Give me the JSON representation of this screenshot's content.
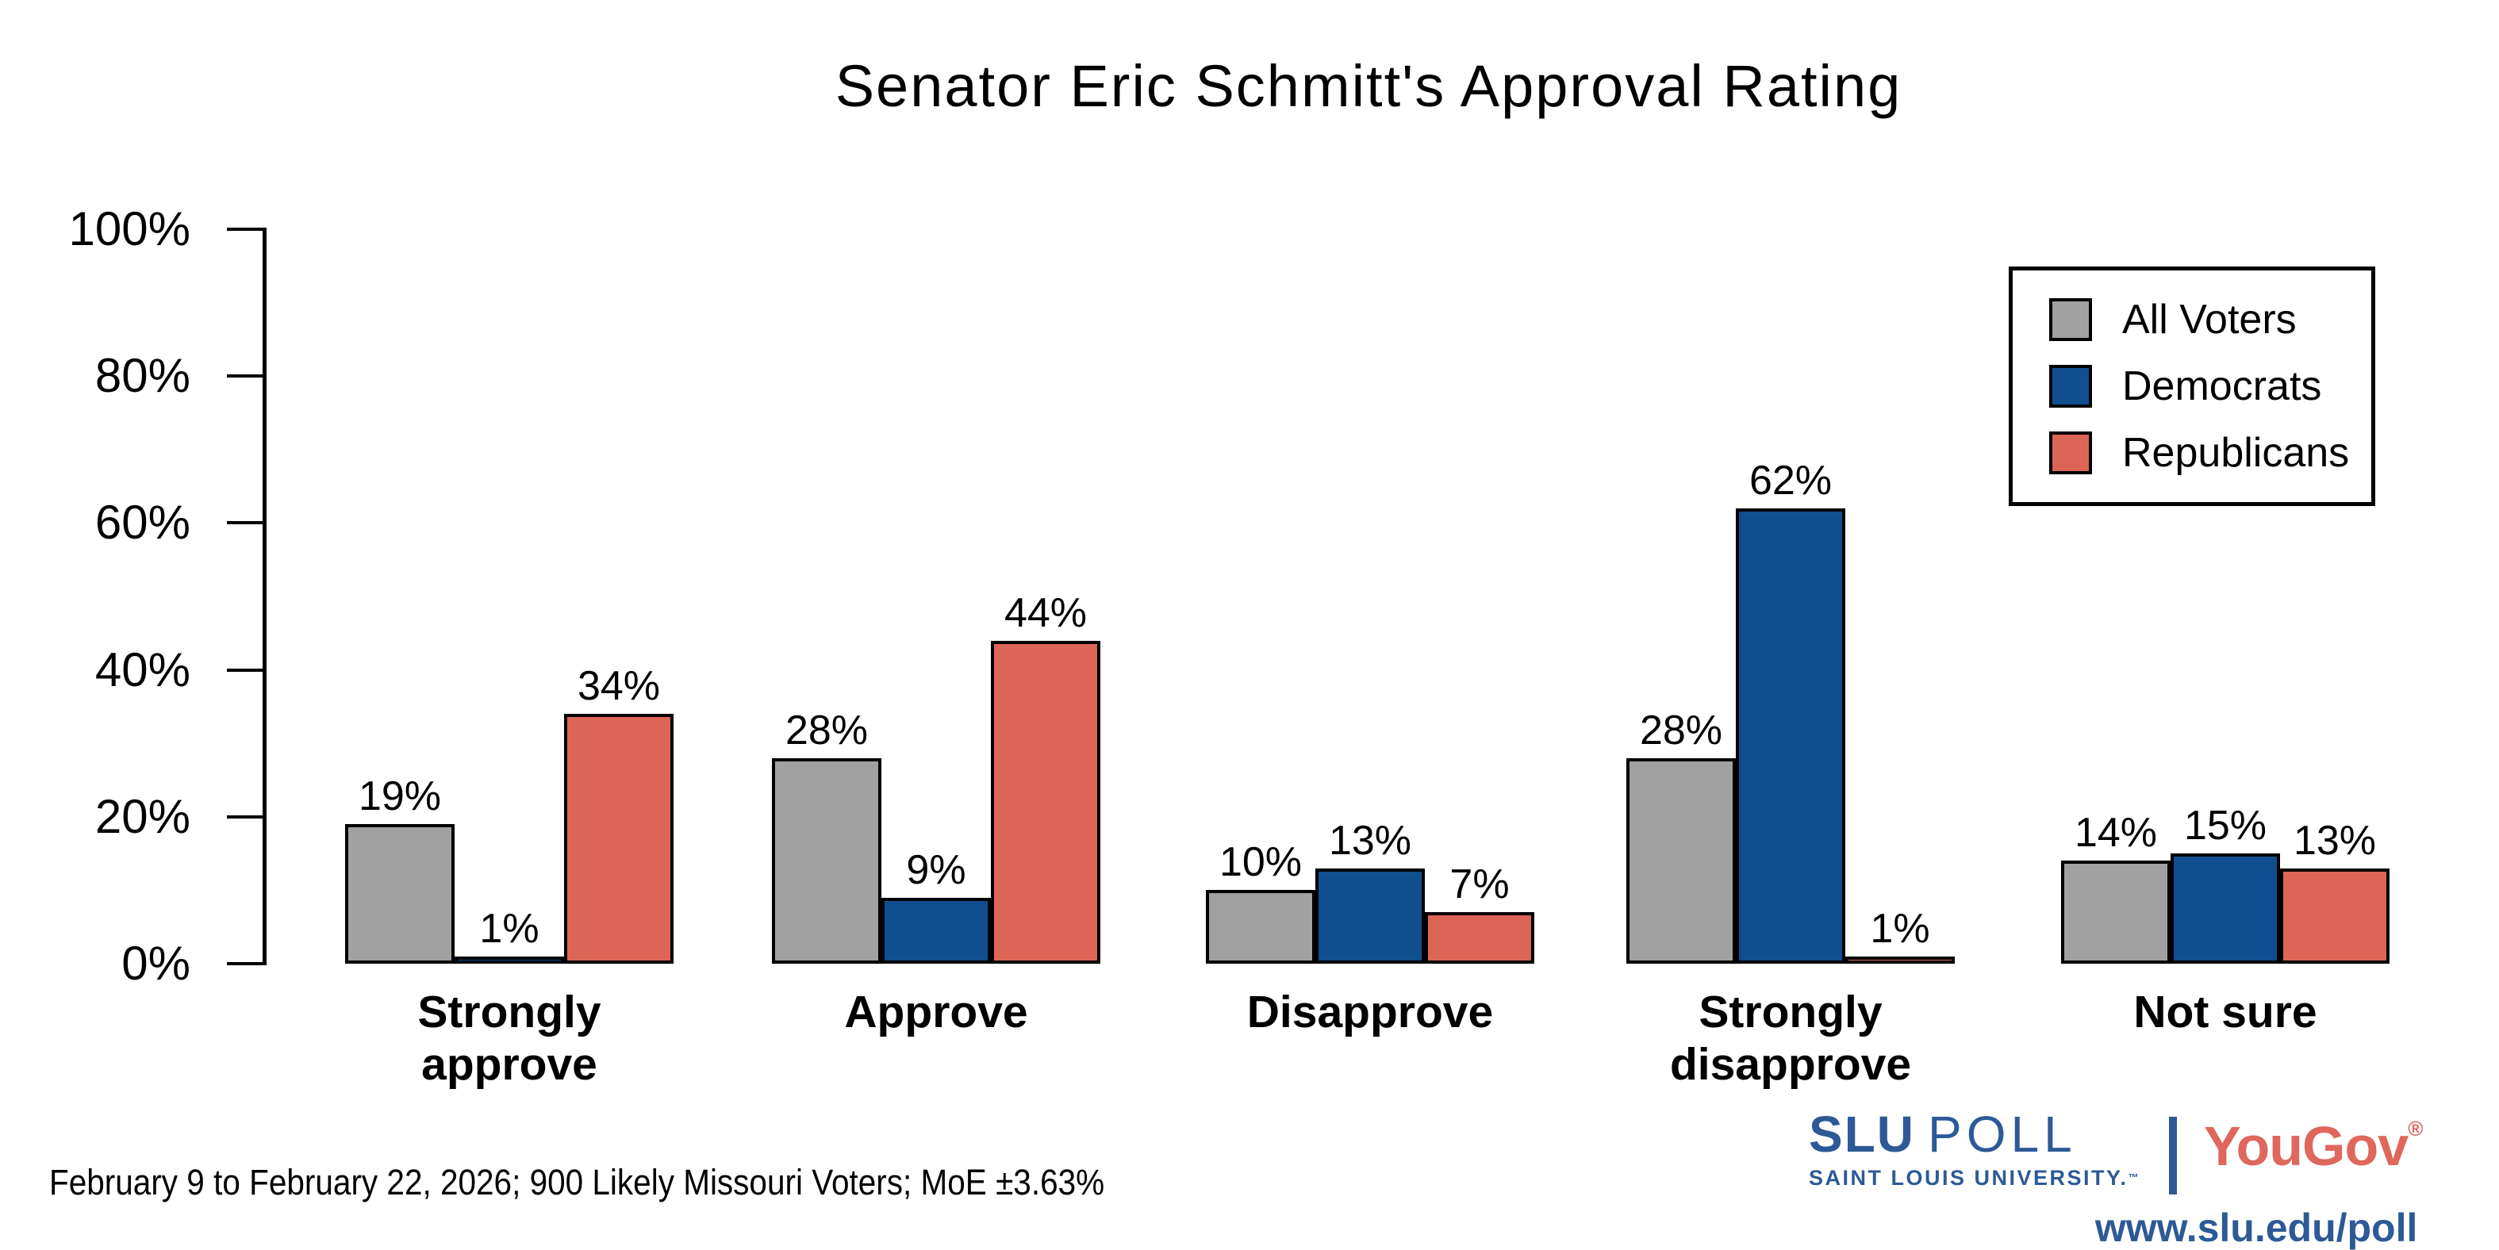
{
  "title": "Senator Eric Schmitt's Approval Rating",
  "chart_data": {
    "type": "bar",
    "title": "Senator Eric Schmitt's Approval Rating",
    "categories": [
      "Strongly approve",
      "Approve",
      "Disapprove",
      "Strongly disapprove",
      "Not sure"
    ],
    "category_label_lines": [
      [
        "Strongly",
        "approve"
      ],
      [
        "Approve"
      ],
      [
        "Disapprove"
      ],
      [
        "Strongly",
        "disapprove"
      ],
      [
        "Not sure"
      ]
    ],
    "series": [
      {
        "name": "All Voters",
        "color": "#a1a1a1",
        "values": [
          19,
          28,
          10,
          28,
          14
        ]
      },
      {
        "name": "Democrats",
        "color": "#114e90",
        "values": [
          1,
          9,
          13,
          62,
          15
        ]
      },
      {
        "name": "Republicans",
        "color": "#dc6557",
        "values": [
          34,
          44,
          7,
          1,
          13
        ]
      }
    ],
    "value_suffix": "%",
    "ylim": [
      0,
      100
    ],
    "ytick_labels": [
      "0%",
      "20%",
      "40%",
      "60%",
      "80%",
      "100%"
    ],
    "grid": false,
    "legend_position": "top-right",
    "bar_border_color": "#000000",
    "axis_color": "#000000"
  },
  "footer": {
    "note": "February 9 to February 22, 2026; 900 Likely Missouri Voters; MoE ±3.63%"
  },
  "branding": {
    "slu_name_bold": "SLU",
    "slu_name_light": "POLL",
    "slu_subtitle": "SAINT LOUIS UNIVERSITY.",
    "slu_trademark": "™",
    "partner_name": "YouGov",
    "partner_registered": "®",
    "url": "www.slu.edu/poll",
    "slu_blue": "#2d5a96",
    "yougov_red": "#df675c"
  }
}
